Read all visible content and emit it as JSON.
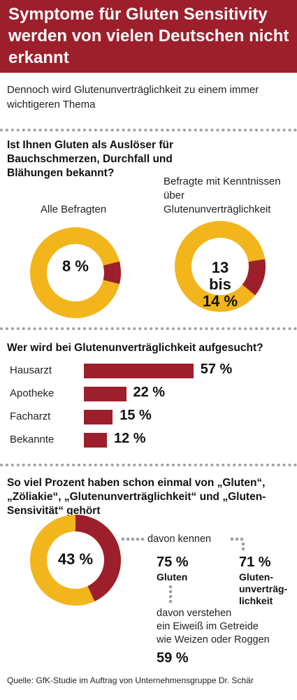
{
  "header": {
    "title": "Symptome für Gluten Sensitivity werden von vielen Deutschen nicht erkannt"
  },
  "subtitle": "Dennoch wird Glutenunverträglichkeit zu einem immer wichtigeren Thema",
  "section1": {
    "question": "Ist Ihnen Gluten als Auslöser für Bauchschmerzen, Durchfall und Blähungen bekannt?",
    "donut_left": {
      "label": "Alle Befragten",
      "value_text": "8 %",
      "fraction": 0.08
    },
    "donut_right": {
      "label": "Befragte mit Kenntnissen über Glutenunverträglichkeit",
      "value_line1": "13",
      "value_line2": "bis",
      "value_line3": "14 %",
      "fraction": 0.135
    }
  },
  "section2": {
    "question": "Wer wird bei Glutenunverträglichkeit aufgesucht?"
  },
  "section3": {
    "question": "So viel Prozent haben schon einmal von „Gluten“, „Zöliakie“, „Glutenunverträglichkeit“ und „Gluten-Sensivität“ gehört",
    "donut": {
      "value_text": "43 %",
      "fraction": 0.43
    },
    "davon_kennen": "davon kennen",
    "gluten_pct": "75 %",
    "gluten_label": "Gluten",
    "unvertraeglichkeit_pct": "71 %",
    "unvertraeglichkeit_label_1": "Gluten-",
    "unvertraeglichkeit_label_2": "unverträg-",
    "unvertraeglichkeit_label_3": "lichkeit",
    "verstehen_1": "davon verstehen",
    "verstehen_2": "ein Eiweiß im Getreide",
    "verstehen_3": "wie Weizen oder Roggen",
    "verstehen_pct": "59 %"
  },
  "source": "Quelle: GfK-Studie im Auftrag von Unternehmensgruppe Dr. Schär",
  "colors": {
    "accent": "#9d1f2b",
    "donut_base": "#f2b51c",
    "dots": "#9aa0a6"
  },
  "chart_data": [
    {
      "type": "pie",
      "title": "Ist Ihnen Gluten als Auslöser für Bauchschmerzen, Durchfall und Blähungen bekannt?",
      "subtitle": "Alle Befragten",
      "values": [
        8,
        92
      ],
      "unit": "%"
    },
    {
      "type": "pie",
      "subtitle": "Befragte mit Kenntnissen über Glutenunverträglichkeit",
      "values": [
        13.5,
        86.5
      ],
      "value_text": "13 bis 14 %",
      "unit": "%"
    },
    {
      "type": "bar",
      "title": "Wer wird bei Glutenunverträglichkeit aufgesucht?",
      "categories": [
        "Hausarzt",
        "Apotheke",
        "Facharzt",
        "Bekannte"
      ],
      "values": [
        57,
        22,
        15,
        12
      ],
      "unit": "%",
      "orientation": "horizontal"
    },
    {
      "type": "pie",
      "title": "So viel Prozent haben schon einmal von „Gluten“, „Zöliakie“, „Glutenunverträglichkeit“ und „Gluten-Sensivität“ gehört",
      "values": [
        43,
        57
      ],
      "unit": "%"
    }
  ]
}
